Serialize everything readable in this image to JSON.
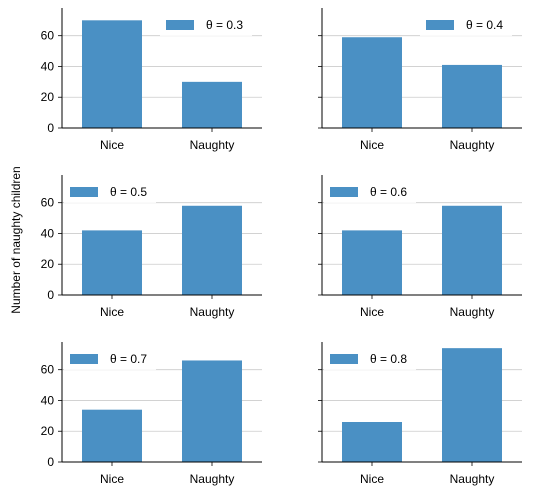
{
  "figure": {
    "ylabel": "Number of naughty children"
  },
  "chart_data": [
    {
      "type": "bar",
      "categories": [
        "Nice",
        "Naughty"
      ],
      "values": [
        70,
        30
      ],
      "legend": "θ = 0.3",
      "legend_loc": "upper right",
      "ylim": [
        0,
        78
      ],
      "yticks": [
        0,
        20,
        40,
        60
      ],
      "grid": "y",
      "color": "#4a90c4"
    },
    {
      "type": "bar",
      "categories": [
        "Nice",
        "Naughty"
      ],
      "values": [
        59,
        41
      ],
      "legend": "θ = 0.4",
      "legend_loc": "upper right",
      "ylim": [
        0,
        78
      ],
      "yticks": [
        0,
        20,
        40,
        60
      ],
      "grid": "y",
      "color": "#4a90c4"
    },
    {
      "type": "bar",
      "categories": [
        "Nice",
        "Naughty"
      ],
      "values": [
        42,
        58
      ],
      "legend": "θ = 0.5",
      "legend_loc": "upper left",
      "ylim": [
        0,
        78
      ],
      "yticks": [
        0,
        20,
        40,
        60
      ],
      "grid": "y",
      "color": "#4a90c4"
    },
    {
      "type": "bar",
      "categories": [
        "Nice",
        "Naughty"
      ],
      "values": [
        42,
        58
      ],
      "legend": "θ = 0.6",
      "legend_loc": "upper left",
      "ylim": [
        0,
        78
      ],
      "yticks": [
        0,
        20,
        40,
        60
      ],
      "grid": "y",
      "color": "#4a90c4"
    },
    {
      "type": "bar",
      "categories": [
        "Nice",
        "Naughty"
      ],
      "values": [
        34,
        66
      ],
      "legend": "θ = 0.7",
      "legend_loc": "upper left",
      "ylim": [
        0,
        78
      ],
      "yticks": [
        0,
        20,
        40,
        60
      ],
      "grid": "y",
      "color": "#4a90c4"
    },
    {
      "type": "bar",
      "categories": [
        "Nice",
        "Naughty"
      ],
      "values": [
        26,
        74
      ],
      "legend": "θ = 0.8",
      "legend_loc": "upper left",
      "ylim": [
        0,
        78
      ],
      "yticks": [
        0,
        20,
        40,
        60
      ],
      "grid": "y",
      "color": "#4a90c4"
    }
  ]
}
